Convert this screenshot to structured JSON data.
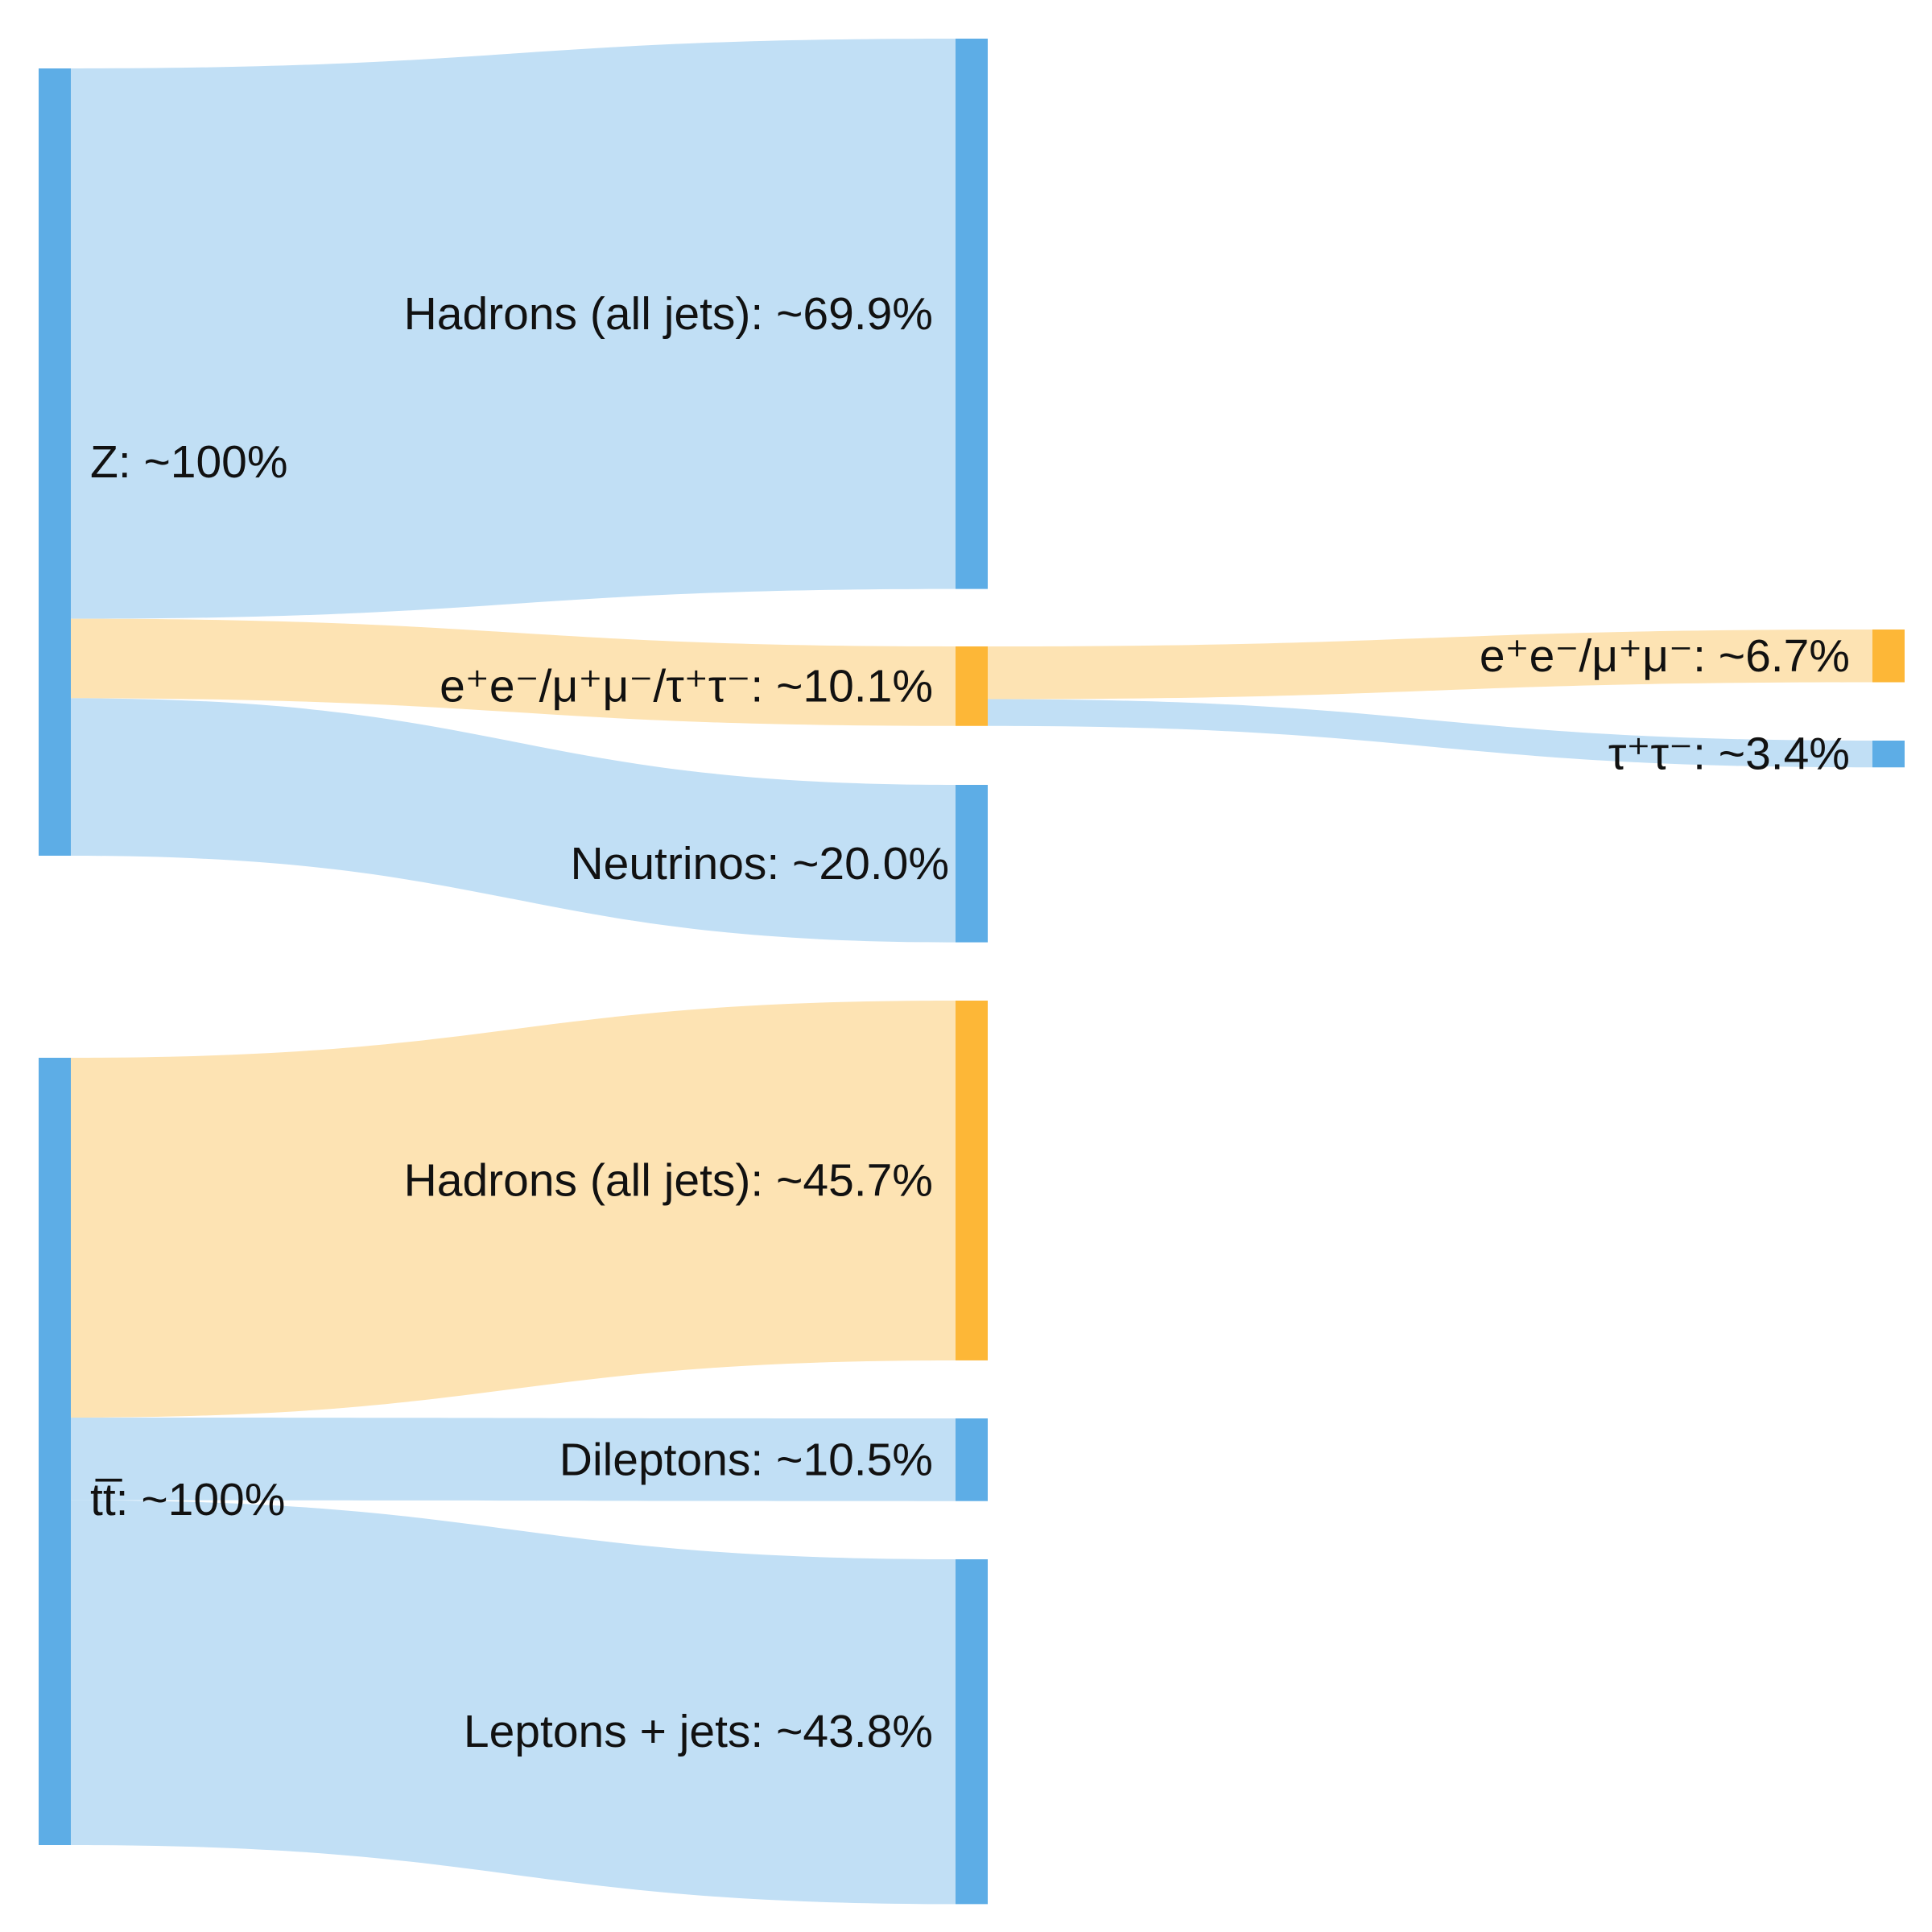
{
  "colors": {
    "blue_node": "#5dade6",
    "blue_link": "#c1dff5",
    "orange_node": "#fdb737",
    "orange_link": "#fde3b3"
  },
  "nodes": [
    {
      "id": "z",
      "label": "Z: ~100%",
      "value": 100,
      "color": "blue"
    },
    {
      "id": "z_hadrons",
      "label": "Hadrons (all jets): ~69.9%",
      "value": 69.9,
      "color": "blue"
    },
    {
      "id": "z_leptons",
      "label": "e⁺e⁻/μ⁺μ⁻/τ⁺τ⁻: ~10.1%",
      "value": 10.1,
      "color": "orange"
    },
    {
      "id": "z_neutrinos",
      "label": "Neutrinos: ~20.0%",
      "value": 20.0,
      "color": "blue"
    },
    {
      "id": "z_ee_mumu",
      "label": "e⁺e⁻/μ⁺μ⁻: ~6.7%",
      "value": 6.7,
      "color": "orange"
    },
    {
      "id": "z_tautau",
      "label": "τ⁺τ⁻: ~3.4%",
      "value": 3.4,
      "color": "blue"
    },
    {
      "id": "tt",
      "label": "tt̅: ~100%",
      "value": 100,
      "color": "blue"
    },
    {
      "id": "tt_hadrons",
      "label": "Hadrons (all jets): ~45.7%",
      "value": 45.7,
      "color": "orange"
    },
    {
      "id": "tt_dileptons",
      "label": "Dileptons: ~10.5%",
      "value": 10.5,
      "color": "blue"
    },
    {
      "id": "tt_lepjets",
      "label": "Leptons + jets: ~43.8%",
      "value": 43.8,
      "color": "blue"
    }
  ],
  "links": [
    {
      "source": "z",
      "target": "z_hadrons",
      "value": 69.9,
      "color": "blue"
    },
    {
      "source": "z",
      "target": "z_leptons",
      "value": 10.1,
      "color": "orange"
    },
    {
      "source": "z",
      "target": "z_neutrinos",
      "value": 20.0,
      "color": "blue"
    },
    {
      "source": "z_leptons",
      "target": "z_ee_mumu",
      "value": 6.7,
      "color": "orange"
    },
    {
      "source": "z_leptons",
      "target": "z_tautau",
      "value": 3.4,
      "color": "blue"
    },
    {
      "source": "tt",
      "target": "tt_hadrons",
      "value": 45.7,
      "color": "orange"
    },
    {
      "source": "tt",
      "target": "tt_dileptons",
      "value": 10.5,
      "color": "blue"
    },
    {
      "source": "tt",
      "target": "tt_lepjets",
      "value": 43.8,
      "color": "blue"
    }
  ]
}
